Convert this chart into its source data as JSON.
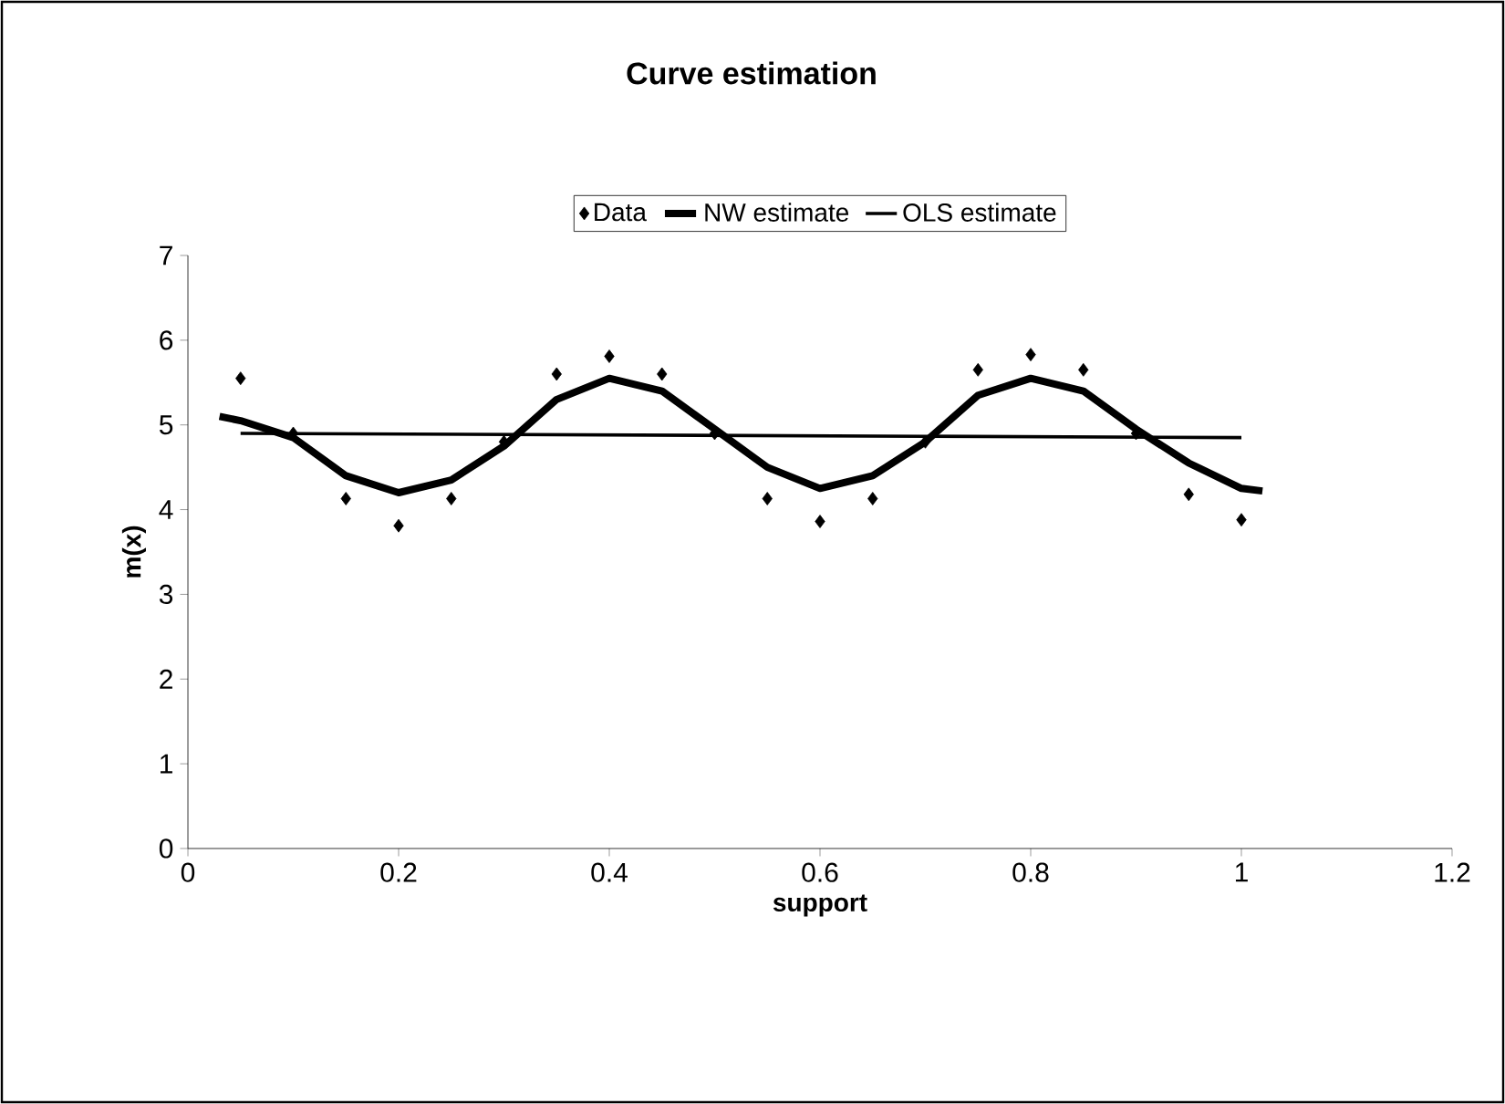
{
  "chart_data": {
    "type": "line",
    "title": "Curve estimation",
    "xlabel": "support",
    "ylabel": "m(x)",
    "xlim": [
      0,
      1.2
    ],
    "xticks": [
      0,
      0.2,
      0.4,
      0.6,
      0.8,
      1,
      1.2
    ],
    "ylim": [
      0,
      7
    ],
    "yticks": [
      0,
      1,
      2,
      3,
      4,
      5,
      6,
      7
    ],
    "grid": false,
    "legend": "top",
    "series": [
      {
        "name": "Data",
        "type": "scatter",
        "marker": "diamond",
        "color": "#000000",
        "x": [
          0.05,
          0.1,
          0.15,
          0.2,
          0.25,
          0.3,
          0.35,
          0.4,
          0.45,
          0.5,
          0.55,
          0.6,
          0.65,
          0.7,
          0.75,
          0.8,
          0.85,
          0.9,
          0.95,
          1.0
        ],
        "values": [
          5.55,
          4.9,
          4.13,
          3.81,
          4.13,
          4.8,
          5.6,
          5.81,
          5.6,
          4.9,
          4.13,
          3.86,
          4.13,
          4.8,
          5.65,
          5.83,
          5.65,
          4.9,
          4.18,
          3.88
        ]
      },
      {
        "name": "NW estimate",
        "color": "#000000",
        "x": [
          0.03,
          0.05,
          0.1,
          0.15,
          0.2,
          0.25,
          0.3,
          0.35,
          0.4,
          0.45,
          0.5,
          0.55,
          0.6,
          0.65,
          0.7,
          0.75,
          0.8,
          0.85,
          0.9,
          0.95,
          1.0,
          1.02
        ],
        "values": [
          5.1,
          5.05,
          4.85,
          4.4,
          4.2,
          4.35,
          4.75,
          5.3,
          5.55,
          5.4,
          4.95,
          4.5,
          4.25,
          4.4,
          4.8,
          5.35,
          5.55,
          5.4,
          4.95,
          4.55,
          4.25,
          4.22
        ]
      },
      {
        "name": "OLS estimate",
        "color": "#000000",
        "x": [
          0.05,
          1.0
        ],
        "values": [
          4.9,
          4.85
        ]
      }
    ]
  }
}
